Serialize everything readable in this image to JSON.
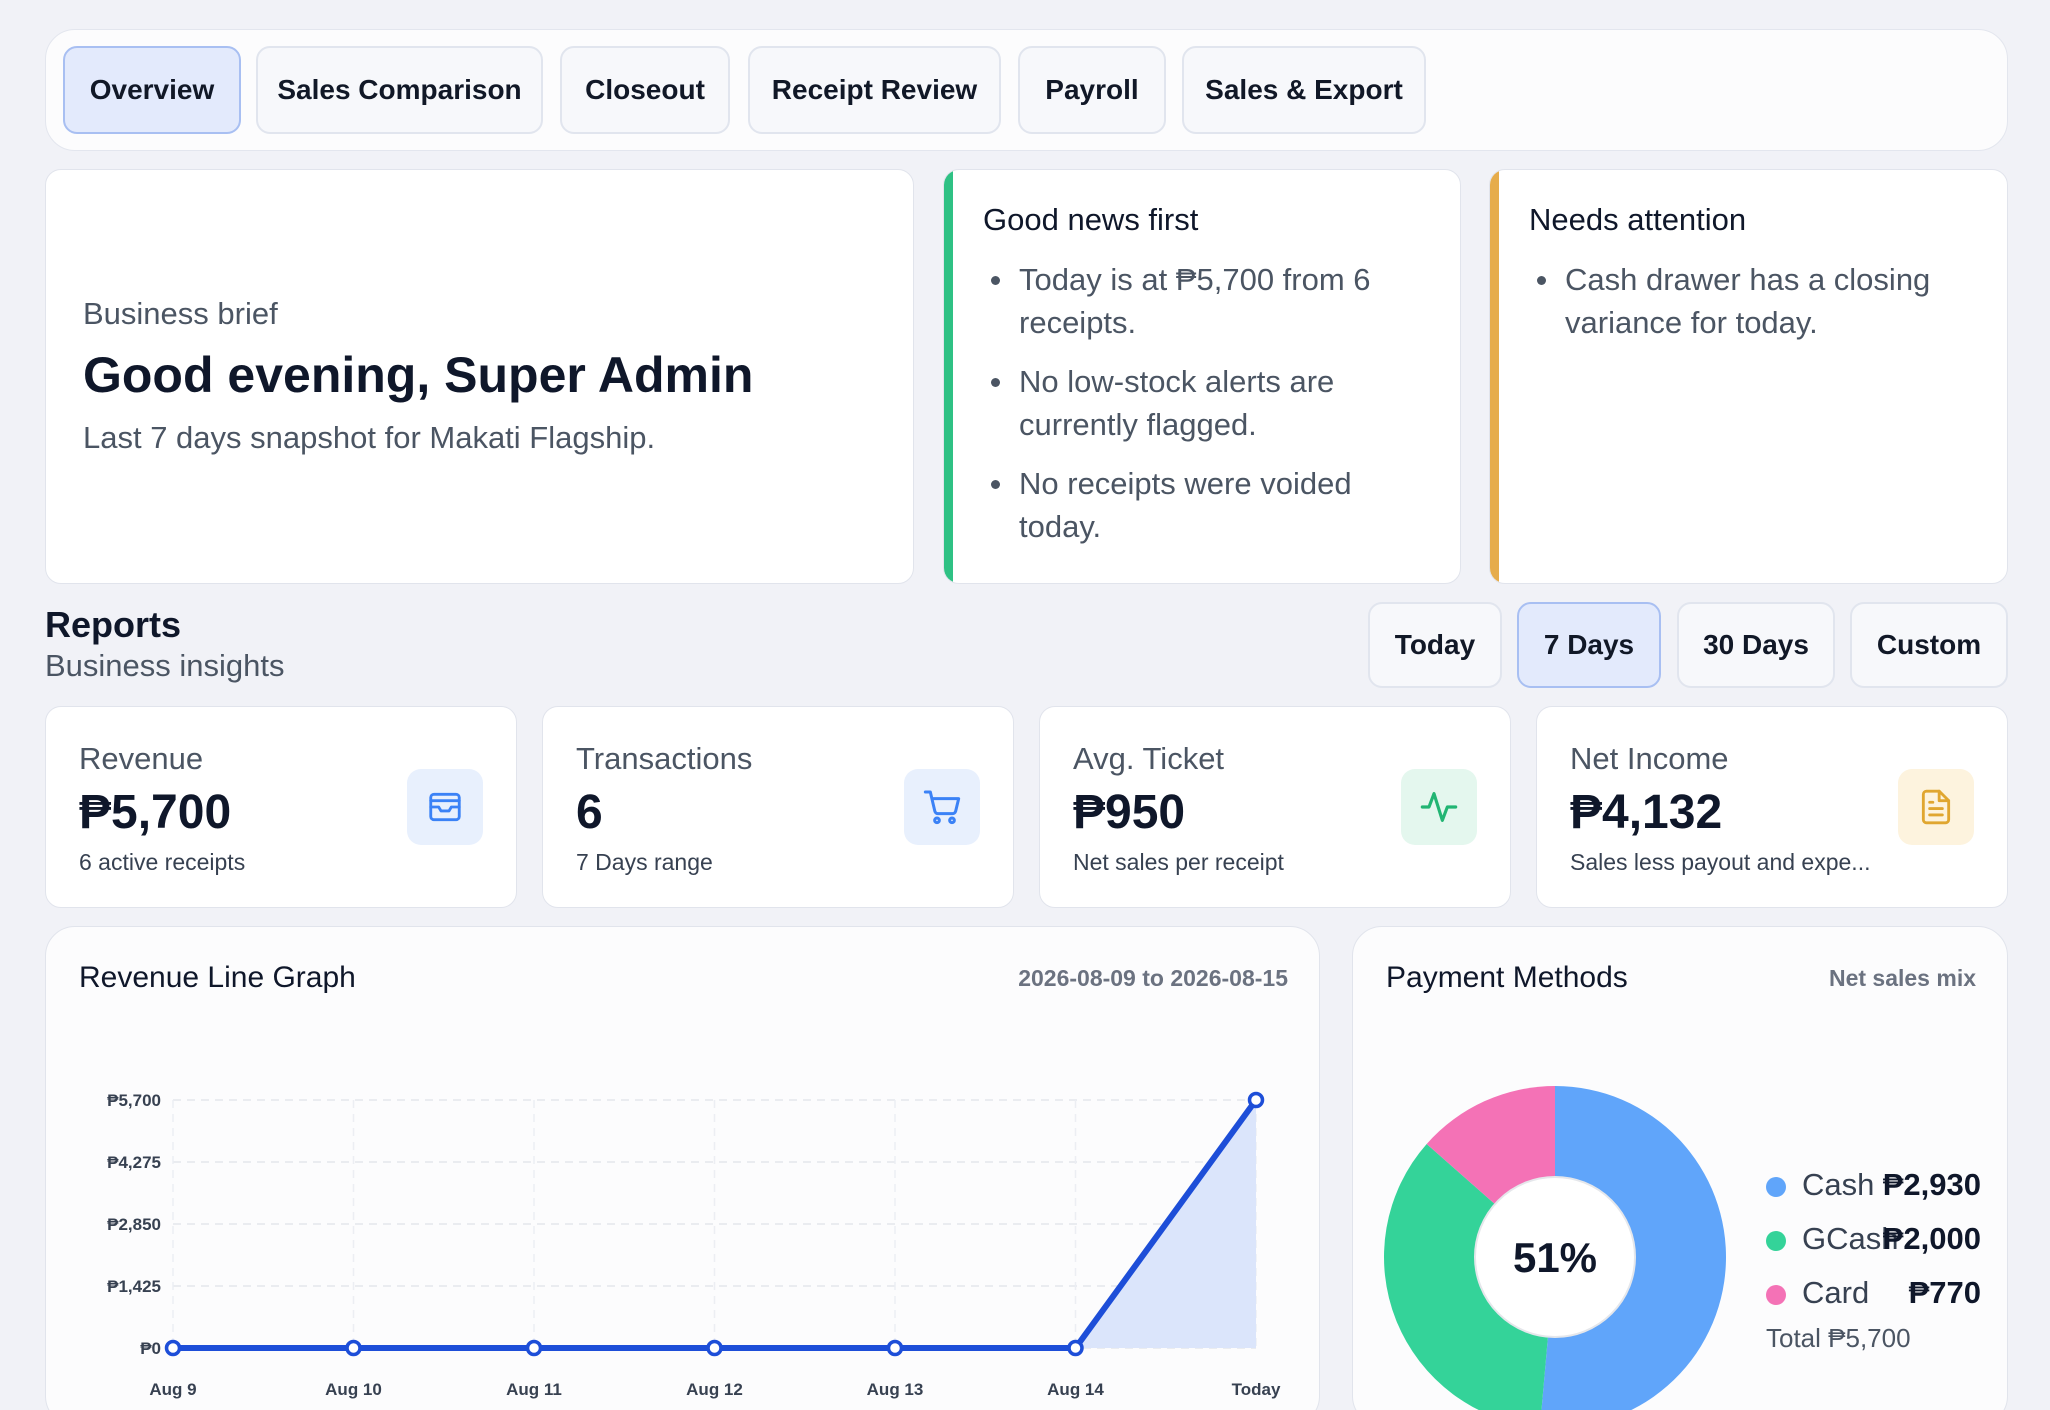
{
  "tabs": [
    {
      "label": "Overview",
      "active": true
    },
    {
      "label": "Sales Comparison",
      "active": false
    },
    {
      "label": "Closeout",
      "active": false
    },
    {
      "label": "Receipt Review",
      "active": false
    },
    {
      "label": "Payroll",
      "active": false
    },
    {
      "label": "Sales & Export",
      "active": false
    }
  ],
  "brief": {
    "label": "Business brief",
    "title": "Good evening, Super Admin",
    "subtitle": "Last 7 days snapshot for Makati Flagship."
  },
  "good_news": {
    "title": "Good news first",
    "accent": "#2fc184",
    "items": [
      "Today is at ₱5,700 from 6 receipts.",
      "No low-stock alerts are currently flagged.",
      "No receipts were voided today."
    ]
  },
  "attention": {
    "title": "Needs attention",
    "accent": "#e6ac4b",
    "items": [
      "Cash drawer has a closing variance for today."
    ]
  },
  "reports": {
    "title": "Reports",
    "subtitle": "Business insights",
    "ranges": [
      {
        "label": "Today",
        "active": false
      },
      {
        "label": "7 Days",
        "active": true
      },
      {
        "label": "30 Days",
        "active": false
      },
      {
        "label": "Custom",
        "active": false
      }
    ]
  },
  "kpis": [
    {
      "label": "Revenue",
      "value": "₱5,700",
      "sub": "6 active receipts",
      "icon": "wallet-icon",
      "color": "#3b82f6",
      "bg": "#e8f0fd"
    },
    {
      "label": "Transactions",
      "value": "6",
      "sub": "7 Days range",
      "icon": "cart-icon",
      "color": "#3b82f6",
      "bg": "#e8f0fd"
    },
    {
      "label": "Avg. Ticket",
      "value": "₱950",
      "sub": "Net sales per receipt",
      "icon": "activity-icon",
      "color": "#22b573",
      "bg": "#e4f7ee"
    },
    {
      "label": "Net Income",
      "value": "₱4,132",
      "sub": "Sales less payout and expe...",
      "icon": "document-icon",
      "color": "#e0a630",
      "bg": "#fdf3de"
    }
  ],
  "revenue_panel": {
    "title": "Revenue Line Graph",
    "range": "2026-08-09 to 2026-08-15"
  },
  "payment_panel": {
    "title": "Payment Methods",
    "meta": "Net sales mix",
    "center_label": "51%",
    "total": "Total ₱5,700"
  },
  "chart_data": [
    {
      "type": "area",
      "title": "Revenue Line Graph",
      "categories": [
        "Aug 9",
        "Aug 10",
        "Aug 11",
        "Aug 12",
        "Aug 13",
        "Aug 14",
        "Today"
      ],
      "values": [
        0,
        0,
        0,
        0,
        0,
        0,
        5700
      ],
      "yticks": [
        "₱0",
        "₱1,425",
        "₱2,850",
        "₱4,275",
        "₱5,700"
      ],
      "ylim": [
        0,
        5700
      ],
      "grid": true,
      "line_color": "#1d4ed8",
      "fill_color": "#dbe5fb"
    },
    {
      "type": "pie",
      "title": "Payment Methods",
      "donut": true,
      "slices": [
        {
          "name": "Cash",
          "value": 2930,
          "label": "₱2,930",
          "color": "#60a5fa"
        },
        {
          "name": "GCash",
          "value": 2000,
          "label": "₱2,000",
          "color": "#34d399"
        },
        {
          "name": "Card",
          "value": 770,
          "label": "₱770",
          "color": "#f472b6"
        }
      ]
    }
  ]
}
